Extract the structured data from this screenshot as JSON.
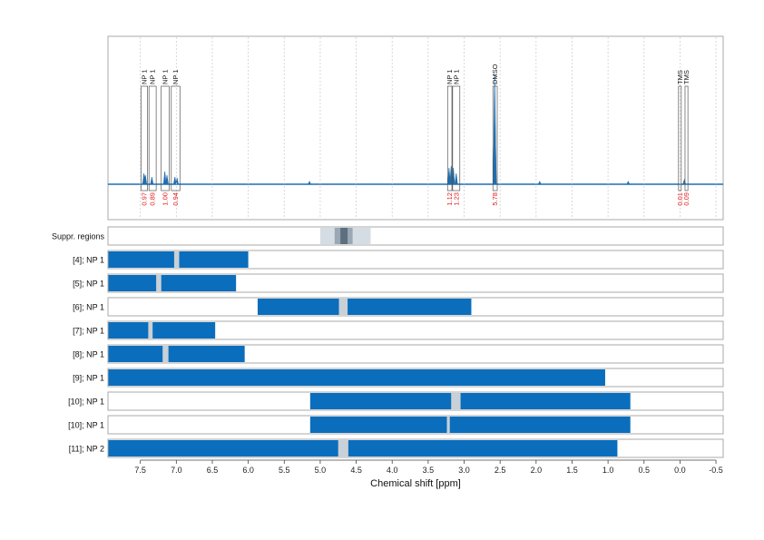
{
  "chart_data": {
    "type": "line",
    "xlabel": "Chemical shift [ppm]",
    "x_reversed": true,
    "xlim": [
      7.95,
      -0.6
    ],
    "x_ticks": [
      "7.5",
      "7.0",
      "6.5",
      "6.0",
      "5.5",
      "5.0",
      "4.5",
      "4.0",
      "3.5",
      "3.0",
      "2.5",
      "2.0",
      "1.5",
      "1.0",
      "0.5",
      "0.0",
      "-0.5"
    ],
    "x_tick_values": [
      7.5,
      7.0,
      6.5,
      6.0,
      5.5,
      5.0,
      4.5,
      4.0,
      3.5,
      3.0,
      2.5,
      2.0,
      1.5,
      1.0,
      0.5,
      0.0,
      -0.5
    ],
    "colors": {
      "spectrum": "#1f6fb0",
      "bar": "#0a6ebd",
      "gap": "#c9d0d6",
      "suppr_light": "#d5dde4",
      "suppr_mid": "#9aa8b5",
      "suppr_dark": "#5d6e7e",
      "integral_text": "#e31a1c",
      "frame": "#aaaaaa"
    },
    "spectrum": {
      "baseline_ppm": [
        7.95,
        -0.6
      ],
      "peaks": [
        {
          "ppm": 7.45,
          "height": 0.06
        },
        {
          "ppm": 7.43,
          "height": 0.05
        },
        {
          "ppm": 7.34,
          "height": 0.04
        },
        {
          "ppm": 7.16,
          "height": 0.07
        },
        {
          "ppm": 7.13,
          "height": 0.05
        },
        {
          "ppm": 7.02,
          "height": 0.04
        },
        {
          "ppm": 6.99,
          "height": 0.035
        },
        {
          "ppm": 5.15,
          "height": 0.015
        },
        {
          "ppm": 3.21,
          "height": 0.09
        },
        {
          "ppm": 3.18,
          "height": 0.1
        },
        {
          "ppm": 3.15,
          "height": 0.09
        },
        {
          "ppm": 3.11,
          "height": 0.06
        },
        {
          "ppm": 2.58,
          "height": 0.35
        },
        {
          "ppm": 2.575,
          "height": 0.6
        },
        {
          "ppm": 2.57,
          "height": 0.35
        },
        {
          "ppm": 1.95,
          "height": 0.015
        },
        {
          "ppm": 0.72,
          "height": 0.015
        },
        {
          "ppm": -0.06,
          "height": 0.025
        }
      ]
    },
    "peak_boxes": [
      {
        "label": "NP 1",
        "integral": "0.97",
        "from": 7.49,
        "to": 7.4
      },
      {
        "label": "NP 1",
        "integral": "0.89",
        "from": 7.38,
        "to": 7.28
      },
      {
        "label": "NP 1",
        "integral": "1.00",
        "from": 7.21,
        "to": 7.1
      },
      {
        "label": "NP 1",
        "integral": "0.94",
        "from": 7.07,
        "to": 6.95
      },
      {
        "label": "NP 1",
        "integral": "1.12",
        "from": 3.23,
        "to": 3.17
      },
      {
        "label": "NP 1",
        "integral": "1.23",
        "from": 3.16,
        "to": 3.06
      },
      {
        "label": "DMSO",
        "integral": "5.78",
        "from": 2.6,
        "to": 2.54
      },
      {
        "label": "TMS",
        "integral": "0.01",
        "from": 0.02,
        "to": -0.01
      },
      {
        "label": "TMS",
        "integral": "0.09",
        "from": -0.07,
        "to": -0.11
      }
    ],
    "suppr_regions": {
      "label": "Suppr. regions",
      "bands": [
        {
          "from": 5.0,
          "to": 4.3,
          "shade": "light"
        },
        {
          "from": 4.8,
          "to": 4.55,
          "shade": "mid"
        },
        {
          "from": 4.72,
          "to": 4.62,
          "shade": "dark"
        }
      ]
    },
    "rows": [
      {
        "label": "[4]; NP 1",
        "segments": [
          [
            7.95,
            7.03
          ],
          [
            6.96,
            6.0
          ]
        ]
      },
      {
        "label": "[5]; NP 1",
        "segments": [
          [
            7.95,
            7.28
          ],
          [
            7.21,
            6.17
          ]
        ]
      },
      {
        "label": "[6]; NP 1",
        "segments": [
          [
            5.87,
            4.74
          ],
          [
            4.62,
            2.9
          ]
        ]
      },
      {
        "label": "[7]; NP 1",
        "segments": [
          [
            7.95,
            7.39
          ],
          [
            7.33,
            6.46
          ]
        ]
      },
      {
        "label": "[8]; NP 1",
        "segments": [
          [
            7.95,
            7.19
          ],
          [
            7.11,
            6.05
          ]
        ]
      },
      {
        "label": "[9]; NP 1",
        "segments": [
          [
            7.95,
            1.04
          ]
        ]
      },
      {
        "label": "[10]; NP 1",
        "segments": [
          [
            5.14,
            3.18
          ],
          [
            3.05,
            0.69
          ]
        ]
      },
      {
        "label": "[10]; NP 1",
        "segments": [
          [
            5.14,
            3.24
          ],
          [
            3.2,
            0.69
          ]
        ]
      },
      {
        "label": "[11]; NP 2",
        "segments": [
          [
            7.95,
            4.75
          ],
          [
            4.61,
            0.87
          ]
        ]
      }
    ]
  }
}
